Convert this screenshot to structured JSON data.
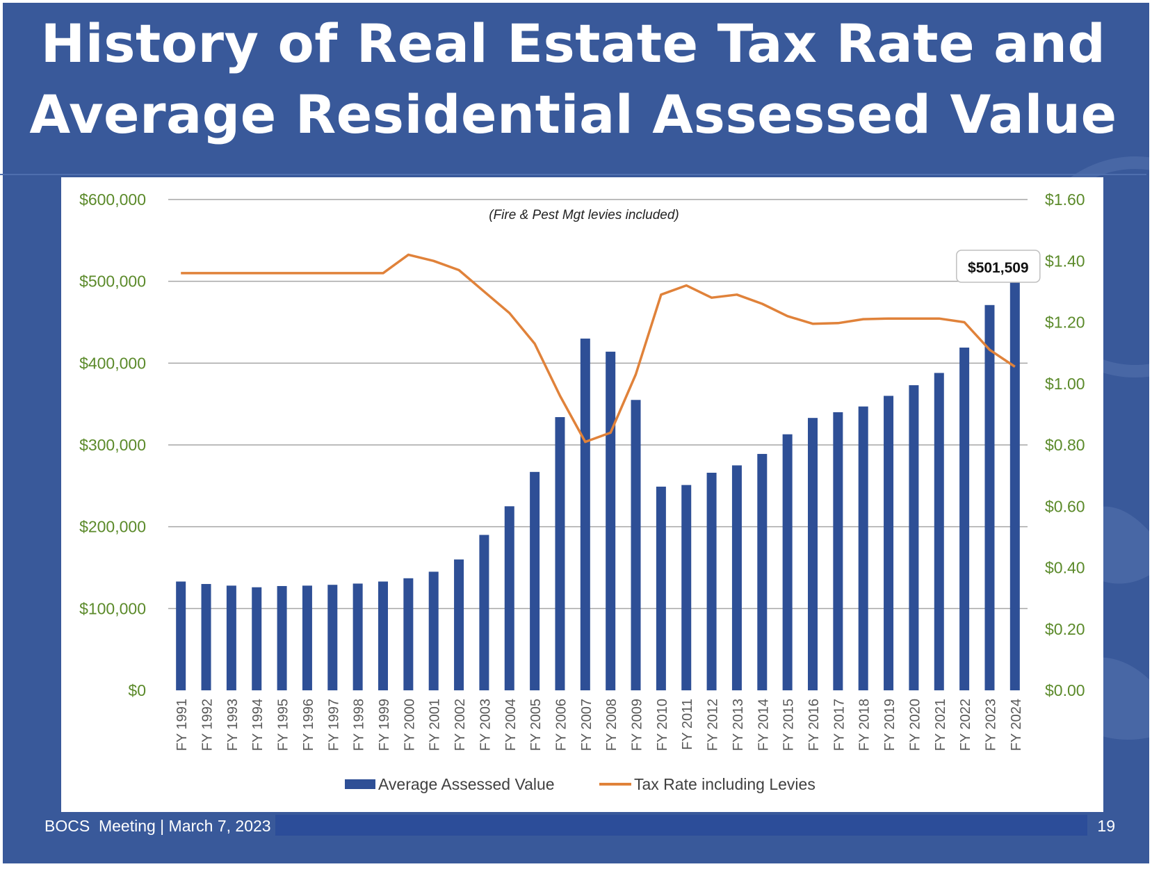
{
  "slide": {
    "title_line1": "History of Real Estate Tax Rate and",
    "title_line2": "Average Residential Assessed Value",
    "footer_left": "BOCS  Meeting | March 7, 2023",
    "page_number": "19"
  },
  "colors": {
    "background": "#39599a",
    "bar": "#2e4f96",
    "line": "#e0823a",
    "axis_text": "#5b8a2a",
    "grid": "#a6a6a6"
  },
  "chart_data": {
    "type": "bar",
    "title": "",
    "subtitle": "(Fire & Pest Mgt levies included)",
    "xlabel": "",
    "ylabel": "",
    "categories": [
      "FY 1991",
      "FY 1992",
      "FY 1993",
      "FY 1994",
      "FY 1995",
      "FY 1996",
      "FY 1997",
      "FY 1998",
      "FY 1999",
      "FY 2000",
      "FY 2001",
      "FY 2002",
      "FY 2003",
      "FY 2004",
      "FY 2005",
      "FY 2006",
      "FY 2007",
      "FY 2008",
      "FY 2009",
      "FY 2010",
      "FY 2011",
      "FY 2012",
      "FY 2013",
      "FY 2014",
      "FY 2015",
      "FY 2016",
      "FY 2017",
      "FY 2018",
      "FY 2019",
      "FY 2020",
      "FY 2021",
      "FY 2022",
      "FY 2023",
      "FY 2024"
    ],
    "series": [
      {
        "name": "Average Assessed Value",
        "type": "bar",
        "axis": "left",
        "values": [
          133000,
          130000,
          128000,
          126000,
          127500,
          128000,
          129000,
          130500,
          133000,
          137000,
          145000,
          160000,
          190000,
          225000,
          267000,
          334000,
          430000,
          414000,
          355000,
          249000,
          251000,
          266000,
          275000,
          289000,
          313000,
          333000,
          340000,
          347000,
          360000,
          373000,
          388000,
          419000,
          471000,
          501509
        ]
      },
      {
        "name": "Tax Rate including Levies",
        "type": "line",
        "axis": "right",
        "values": [
          1.36,
          1.36,
          1.36,
          1.36,
          1.36,
          1.36,
          1.36,
          1.36,
          1.36,
          1.42,
          1.4,
          1.37,
          1.3,
          1.23,
          1.13,
          0.96,
          0.81,
          0.84,
          1.03,
          1.29,
          1.32,
          1.28,
          1.29,
          1.26,
          1.22,
          1.195,
          1.197,
          1.21,
          1.212,
          1.212,
          1.212,
          1.2,
          1.11,
          1.055
        ]
      }
    ],
    "y_left": {
      "lim": [
        0,
        600000
      ],
      "ticks": [
        "$0",
        "$100,000",
        "$200,000",
        "$300,000",
        "$400,000",
        "$500,000",
        "$600,000"
      ]
    },
    "y_right": {
      "lim": [
        0,
        1.6
      ],
      "ticks": [
        "$0.00",
        "$0.20",
        "$0.40",
        "$0.60",
        "$0.80",
        "$1.00",
        "$1.20",
        "$1.40",
        "$1.60"
      ]
    },
    "data_label": {
      "category": "FY 2024",
      "text": "$501,509"
    },
    "grid": true,
    "legend_position": "bottom"
  }
}
